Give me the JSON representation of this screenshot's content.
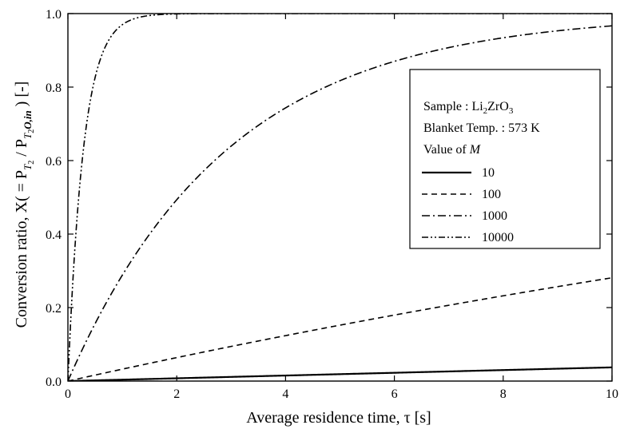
{
  "chart_data": {
    "type": "line",
    "xlabel": "Average residence time, τ [s]",
    "ylabel": "Conversion ratio, X( = P",
    "ylabel_parts": {
      "prefix": "Conversion ratio, X( = P",
      "sub1": "T",
      "subsub1": "2",
      "slash": " / P",
      "sub2": "T",
      "subsub2": "2",
      "sub2_tail": "O,in",
      "suffix": " ) [-]"
    },
    "xlim": [
      0,
      10
    ],
    "ylim": [
      0,
      1.0
    ],
    "x_ticks": [
      "0",
      "2",
      "4",
      "6",
      "8",
      "10"
    ],
    "y_ticks": [
      "0.0",
      "0.2",
      "0.4",
      "0.6",
      "0.8",
      "1.0"
    ],
    "legend": {
      "placement": "right",
      "sample_label": "Sample : Li",
      "sample_sub1": "2",
      "sample_mid": "ZrO",
      "sample_sub2": "3",
      "temp_label": "Blanket Temp. : 573 K",
      "value_label": "Value of ",
      "value_symbol": "M"
    },
    "series": [
      {
        "name": "10",
        "dash": "solid",
        "k": 0.0038
      },
      {
        "name": "100",
        "dash": "dashed",
        "k": 0.033
      },
      {
        "name": "1000",
        "dash": "dashdot",
        "k": 0.34
      },
      {
        "name": "10000",
        "dash": "dashdotdot",
        "k": 3.5
      }
    ]
  }
}
